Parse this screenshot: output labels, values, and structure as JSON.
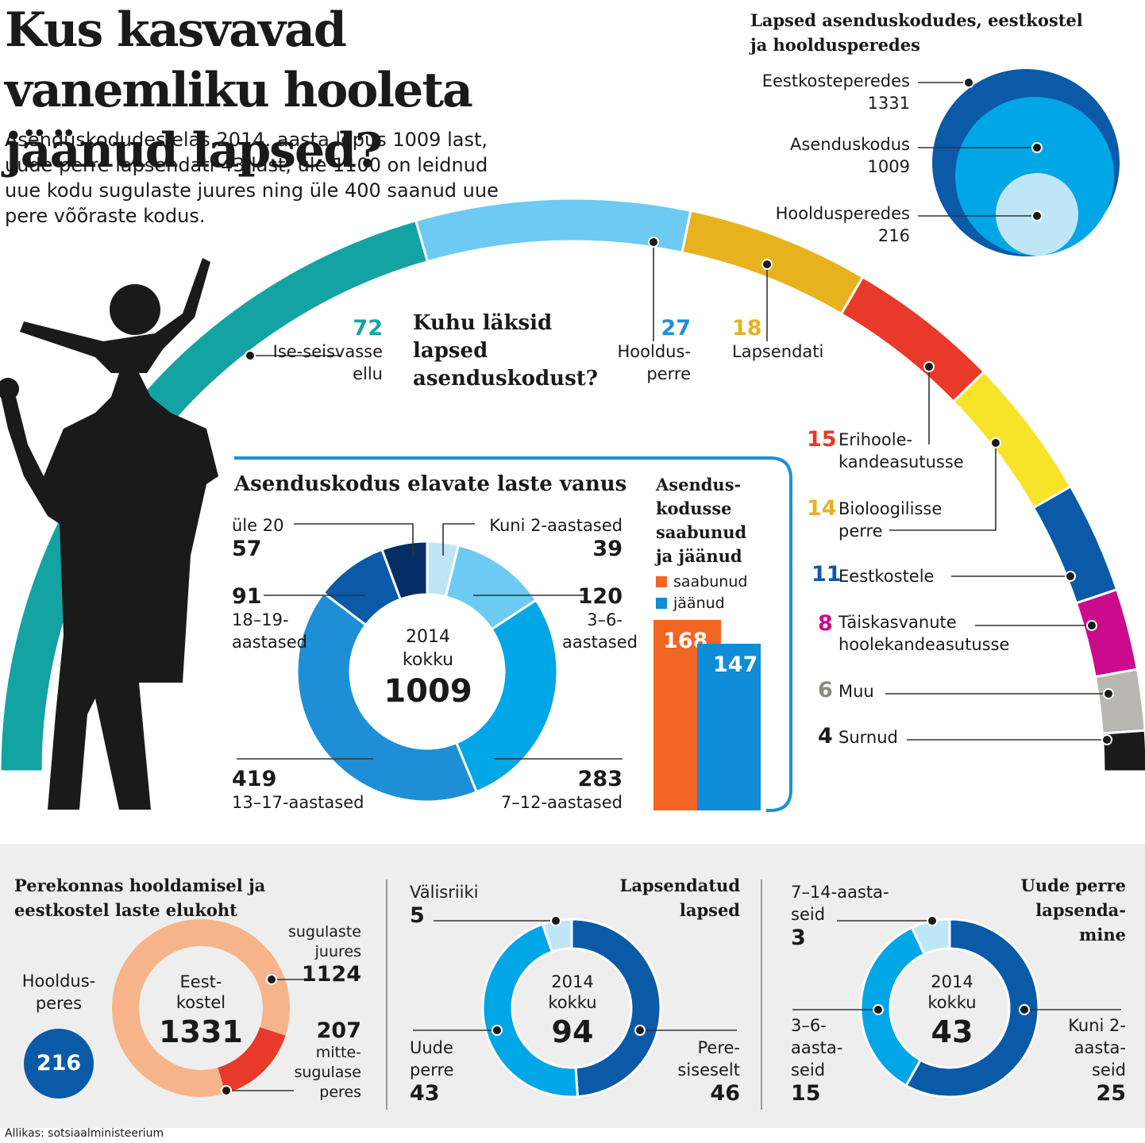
{
  "title": "Kus kasvavad vanemliku hooleta jäänud lapsed?",
  "intro": "Asenduskodudes elas 2014. aasta lõpus 1009 last, uude perre lapsendati 43 last, üle 1100 on leidnud uue kodu sugulaste juures ning üle 400 saanud uue pere võõraste kodus.",
  "circles": {
    "title": "Lapsed asenduskodudes, eestkostel ja hooldusperedes",
    "items": [
      {
        "label": "Eestkosteperedes",
        "value": "1331",
        "color": "#0a5aa8"
      },
      {
        "label": "Asenduskodus",
        "value": "1009",
        "color": "#00a6e6"
      },
      {
        "label": "Hooldusperedes",
        "value": "216",
        "color": "#bfe6f7"
      }
    ]
  },
  "arc": {
    "question": "Kuhu läksid lapsed asenduskodust?",
    "segments": [
      {
        "value": "72",
        "label": "Ise-seisvasse ellu",
        "color": "#14a3a3"
      },
      {
        "value": "27",
        "label": "Hooldus-perre",
        "color": "#6dcaf2"
      },
      {
        "value": "18",
        "label": "Lapsendati",
        "color": "#e8b21f"
      },
      {
        "value": "15",
        "label": "Erihoole-kandeasutusse",
        "color": "#e8392a"
      },
      {
        "value": "14",
        "label": "Bioloogilisse perre",
        "color": "#f7e42a"
      },
      {
        "value": "11",
        "label": "Eestkostele",
        "color": "#0a5aa8"
      },
      {
        "value": "8",
        "label": "Täiskasvanute hoolekandeasutusse",
        "color": "#cc0a8c"
      },
      {
        "value": "6",
        "label": "Muu",
        "color": "#b8b8b0"
      },
      {
        "value": "4",
        "label": "Surnud",
        "color": "#1a1a1a"
      }
    ]
  },
  "ages": {
    "title": "Asenduskodus elavate laste vanus",
    "center_line1": "2014",
    "center_line2": "kokku",
    "total": "1009",
    "segments": [
      {
        "value": "39",
        "label": "Kuni 2-aastased",
        "color": "#bfe6f7"
      },
      {
        "value": "120",
        "label": "3–6-aastased",
        "color": "#6dcaf2"
      },
      {
        "value": "283",
        "label": "7–12-aastased",
        "color": "#00a6e6"
      },
      {
        "value": "419",
        "label": "13–17-aastased",
        "color": "#1e8fd6"
      },
      {
        "value": "91",
        "label": "18–19-aastased",
        "color": "#0a5aa8"
      },
      {
        "value": "57",
        "label": "üle 20",
        "color": "#052e66"
      }
    ]
  },
  "arrivals": {
    "title": "Asendus-kodusse saabunud ja jäänud",
    "items": [
      {
        "label": "saabunud",
        "value": "168",
        "color": "#f26522"
      },
      {
        "label": "jäänud",
        "value": "147",
        "color": "#0f8dd6"
      }
    ]
  },
  "family": {
    "title": "Perekonnas hooldamisel ja eestkostel laste elukoht",
    "center_line1": "Eest-",
    "center_line2": "kostel",
    "total": "1331",
    "foster_label": "Hooldus-peres",
    "foster_value": "216",
    "foster_color": "#0a5aa8",
    "segments": [
      {
        "label": "sugulaste juures",
        "value": "1124",
        "color": "#f7b48a"
      },
      {
        "label": "mitte-sugulase peres",
        "value": "207",
        "color": "#e8392a"
      }
    ]
  },
  "adopted": {
    "title": "Lapsendatud lapsed",
    "center_line1": "2014",
    "center_line2": "kokku",
    "total": "94",
    "segments": [
      {
        "label": "Pere-siseselt",
        "value": "46",
        "color": "#0a5aa8"
      },
      {
        "label": "Uude perre",
        "value": "43",
        "color": "#00a6e6"
      },
      {
        "label": "Välisriiki",
        "value": "5",
        "color": "#bfe6f7"
      }
    ]
  },
  "new_family": {
    "title": "Uude perre lapsenda-mine",
    "center_line1": "2014",
    "center_line2": "kokku",
    "total": "43",
    "segments": [
      {
        "label": "Kuni 2-aasta-seid",
        "value": "25",
        "color": "#0a5aa8"
      },
      {
        "label": "3–6-aasta-seid",
        "value": "15",
        "color": "#00a6e6"
      },
      {
        "label": "7–14-aasta-seid",
        "value": "3",
        "color": "#bfe6f7"
      }
    ]
  },
  "source": "Allikas: sotsiaalministeerium"
}
